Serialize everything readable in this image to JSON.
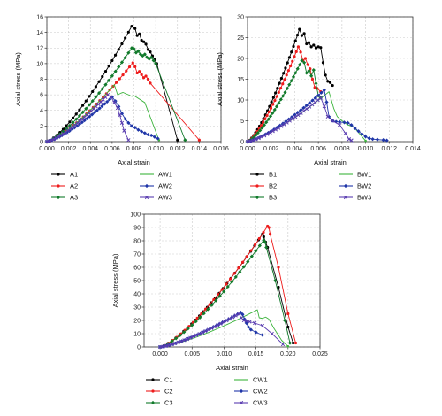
{
  "chart_data": [
    {
      "type": "line",
      "xlabel": "Axial strain",
      "ylabel": "Axial stress (MPa)",
      "xlim": [
        0,
        0.016
      ],
      "ylim": [
        0,
        16
      ],
      "xticks": [
        "0.000",
        "0.002",
        "0.004",
        "0.006",
        "0.008",
        "0.010",
        "0.012",
        "0.014",
        "0.016"
      ],
      "yticks": [
        "0",
        "2",
        "4",
        "6",
        "8",
        "10",
        "12",
        "14",
        "16"
      ],
      "grid": true,
      "legend_position": "bottom",
      "series": [
        {
          "name": "A1",
          "color": "#000000",
          "marker": "circle",
          "peak_x": 0.0078,
          "peak_y": 14.8,
          "post_x": [
            0.0081,
            0.0083,
            0.0085,
            0.0087,
            0.0089,
            0.0091,
            0.0093,
            0.0095,
            0.0097,
            0.0099,
            0.0101,
            0.012
          ],
          "post_y": [
            14.5,
            13.6,
            13.8,
            13.0,
            12.8,
            12.5,
            11.8,
            11.5,
            11.0,
            10.5,
            10.0,
            0.2
          ]
        },
        {
          "name": "A2",
          "color": "#ee1c1c",
          "marker": "circle",
          "peak_x": 0.0079,
          "peak_y": 10.1,
          "post_x": [
            0.0081,
            0.0083,
            0.0085,
            0.0087,
            0.0089,
            0.0091,
            0.0093,
            0.0095,
            0.014
          ],
          "post_y": [
            9.6,
            8.8,
            9.0,
            8.6,
            8.2,
            8.4,
            8.0,
            7.5,
            0.2
          ]
        },
        {
          "name": "A3",
          "color": "#117a2b",
          "marker": "diamond",
          "peak_x": 0.0078,
          "peak_y": 12.0,
          "post_x": [
            0.008,
            0.0082,
            0.0084,
            0.0086,
            0.0088,
            0.009,
            0.0092,
            0.0094,
            0.0096,
            0.0098,
            0.01,
            0.0127
          ],
          "post_y": [
            11.9,
            11.4,
            11.6,
            11.2,
            11.0,
            11.2,
            10.8,
            10.6,
            10.8,
            10.4,
            10.0,
            0.2
          ]
        },
        {
          "name": "AW1",
          "color": "#3cb43c",
          "marker": "none",
          "peak_x": 0.0062,
          "peak_y": 7.3,
          "post_x": [
            0.0065,
            0.0068,
            0.007,
            0.0075,
            0.0078,
            0.008,
            0.009,
            0.0103
          ],
          "post_y": [
            6.0,
            6.2,
            6.3,
            6.0,
            5.8,
            5.9,
            5.0,
            0.2
          ]
        },
        {
          "name": "AW2",
          "color": "#1f36a8",
          "marker": "diamond",
          "peak_x": 0.006,
          "peak_y": 5.7,
          "post_x": [
            0.0063,
            0.0066,
            0.0069,
            0.0072,
            0.0075,
            0.0078,
            0.0081,
            0.0084,
            0.0087,
            0.009,
            0.0093,
            0.0096,
            0.0099,
            0.0102
          ],
          "post_y": [
            5.2,
            4.5,
            3.6,
            2.9,
            2.4,
            2.0,
            1.8,
            1.5,
            1.3,
            1.1,
            0.9,
            0.8,
            0.6,
            0.4
          ]
        },
        {
          "name": "AW3",
          "color": "#5a3db0",
          "marker": "cross",
          "peak_x": 0.0056,
          "peak_y": 6.0,
          "post_x": [
            0.0059,
            0.0062,
            0.0065,
            0.0067,
            0.0069,
            0.0071,
            0.0075
          ],
          "post_y": [
            5.7,
            5.0,
            4.3,
            3.4,
            2.4,
            1.4,
            0.2
          ]
        }
      ]
    },
    {
      "type": "line",
      "xlabel": "Axial strain",
      "ylabel": "Axial stress (MPa)",
      "xlim": [
        0,
        0.014
      ],
      "ylim": [
        0,
        30
      ],
      "xticks": [
        "0.000",
        "0.002",
        "0.004",
        "0.006",
        "0.008",
        "0.010",
        "0.012",
        "0.014"
      ],
      "yticks": [
        "0",
        "5",
        "10",
        "15",
        "20",
        "25",
        "30"
      ],
      "grid": true,
      "legend_position": "bottom",
      "series": [
        {
          "name": "B1",
          "color": "#000000",
          "marker": "circle",
          "peak_x": 0.0044,
          "peak_y": 27.0,
          "post_x": [
            0.0046,
            0.0048,
            0.005,
            0.0052,
            0.0054,
            0.0056,
            0.0058,
            0.006,
            0.0062,
            0.0064,
            0.0066,
            0.0068,
            0.007,
            0.0072
          ],
          "post_y": [
            25.5,
            26.0,
            23.5,
            23.8,
            22.8,
            23.2,
            22.5,
            22.8,
            22.6,
            19.0,
            16.0,
            14.5,
            14.2,
            13.5
          ]
        },
        {
          "name": "B2",
          "color": "#ee1c1c",
          "marker": "circle",
          "peak_x": 0.0043,
          "peak_y": 22.8,
          "post_x": [
            0.0045,
            0.0047,
            0.0049,
            0.0051,
            0.0053,
            0.0055,
            0.0057,
            0.0059,
            0.0062
          ],
          "post_y": [
            21.5,
            19.5,
            20.0,
            18.5,
            17.5,
            15.0,
            13.0,
            12.8,
            12.0
          ]
        },
        {
          "name": "B3",
          "color": "#117a2b",
          "marker": "diamond",
          "peak_x": 0.0046,
          "peak_y": 19.5,
          "post_x": [
            0.0048,
            0.005,
            0.0052,
            0.0054,
            0.0056,
            0.0058,
            0.006,
            0.0062
          ],
          "post_y": [
            19.0,
            16.5,
            17.0,
            15.8,
            17.2,
            14.0,
            11.0,
            10.5
          ]
        },
        {
          "name": "BW1",
          "color": "#3cb43c",
          "marker": "none",
          "peak_x": 0.0069,
          "peak_y": 12.0,
          "post_x": [
            0.0071,
            0.0073,
            0.0076,
            0.008,
            0.0085,
            0.009,
            0.01
          ],
          "post_y": [
            10.0,
            8.0,
            6.0,
            5.0,
            4.0,
            3.5,
            0.2
          ]
        },
        {
          "name": "BW2",
          "color": "#1f36a8",
          "marker": "diamond",
          "peak_x": 0.0065,
          "peak_y": 12.4,
          "post_x": [
            0.0067,
            0.0069,
            0.0072,
            0.0075,
            0.0078,
            0.0082,
            0.0085,
            0.0088,
            0.0091,
            0.0094,
            0.0097,
            0.01,
            0.0103,
            0.0106,
            0.011,
            0.0115,
            0.0118
          ],
          "post_y": [
            9.5,
            6.0,
            5.0,
            4.8,
            4.7,
            4.6,
            4.5,
            4.0,
            3.2,
            2.5,
            1.8,
            1.2,
            0.8,
            0.6,
            0.5,
            0.4,
            0.3
          ]
        },
        {
          "name": "BW3",
          "color": "#5a3db0",
          "marker": "cross",
          "peak_x": 0.0062,
          "peak_y": 10.5,
          "post_x": [
            0.0065,
            0.0068,
            0.0072,
            0.0078,
            0.0083,
            0.0086,
            0.0088
          ],
          "post_y": [
            8.5,
            6.0,
            5.0,
            4.0,
            2.0,
            0.6,
            0.3
          ]
        }
      ]
    },
    {
      "type": "line",
      "xlabel": "Axial strain",
      "ylabel": "Axial stress (MPa)",
      "xlim": [
        -0.0025,
        0.025
      ],
      "ylim": [
        0,
        100
      ],
      "xticks": [
        "0.000",
        "0.005",
        "0.010",
        "0.015",
        "0.020",
        "0.025"
      ],
      "yticks": [
        "0",
        "10",
        "20",
        "30",
        "40",
        "50",
        "60",
        "70",
        "80",
        "90",
        "100"
      ],
      "grid": true,
      "legend_position": "bottom",
      "series": [
        {
          "name": "C1",
          "color": "#000000",
          "marker": "circle",
          "peak_x": 0.016,
          "peak_y": 85.0,
          "post_x": [
            0.0162,
            0.0165,
            0.0168,
            0.0185,
            0.02,
            0.0208
          ],
          "post_y": [
            83.0,
            79.0,
            75.0,
            45.0,
            15.0,
            3.0
          ]
        },
        {
          "name": "C2",
          "color": "#ee1c1c",
          "marker": "circle",
          "peak_x": 0.0168,
          "peak_y": 91.0,
          "post_x": [
            0.017,
            0.0172,
            0.0185,
            0.02,
            0.0212
          ],
          "post_y": [
            90.0,
            85.0,
            60.0,
            25.0,
            3.0
          ]
        },
        {
          "name": "C3",
          "color": "#117a2b",
          "marker": "diamond",
          "peak_x": 0.0162,
          "peak_y": 80.5,
          "post_x": [
            0.0164,
            0.0166,
            0.018,
            0.0195,
            0.0203
          ],
          "post_y": [
            79.0,
            75.0,
            50.0,
            20.0,
            3.0
          ]
        },
        {
          "name": "CW1",
          "color": "#3cb43c",
          "marker": "none",
          "peak_x": 0.0152,
          "peak_y": 28.0,
          "post_x": [
            0.0155,
            0.016,
            0.0165,
            0.017,
            0.0178,
            0.019,
            0.02
          ],
          "post_y": [
            22.0,
            21.5,
            22.5,
            21.0,
            14.0,
            5.0,
            0.5
          ]
        },
        {
          "name": "CW2",
          "color": "#1f36a8",
          "marker": "diamond",
          "peak_x": 0.0126,
          "peak_y": 26.0,
          "post_x": [
            0.0129,
            0.0132,
            0.0135,
            0.0138,
            0.0142,
            0.015,
            0.016
          ],
          "post_y": [
            24.5,
            21.0,
            18.0,
            15.0,
            13.0,
            11.0,
            9.0
          ]
        },
        {
          "name": "CW3",
          "color": "#5a3db0",
          "marker": "cross",
          "peak_x": 0.0123,
          "peak_y": 25.0,
          "post_x": [
            0.0127,
            0.0131,
            0.0135,
            0.014,
            0.0148,
            0.016,
            0.0175,
            0.0192
          ],
          "post_y": [
            22.0,
            20.0,
            19.5,
            19.0,
            18.0,
            16.0,
            10.0,
            2.0
          ]
        }
      ]
    }
  ]
}
